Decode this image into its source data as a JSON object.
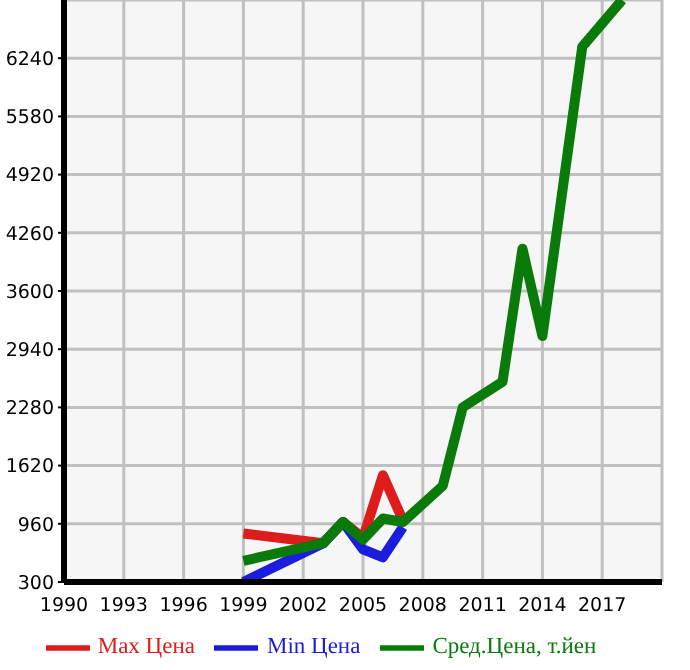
{
  "chart_data": {
    "type": "line",
    "xlim": [
      1990,
      2020
    ],
    "xticks": [
      1990,
      1993,
      1996,
      1999,
      2002,
      2005,
      2008,
      2011,
      2014,
      2017
    ],
    "ylim": [
      300,
      6900
    ],
    "yticks": [
      300,
      960,
      1620,
      2280,
      2940,
      3600,
      4260,
      4920,
      5580,
      6240
    ],
    "grid": true,
    "legend": "bottom",
    "marker": "none",
    "line_style": "solid",
    "series": [
      {
        "name": "Max Цена",
        "color": "#dd1c1c",
        "x": [
          1999,
          2003,
          2004,
          2005,
          2006,
          2007
        ],
        "values": [
          850,
          740,
          980,
          800,
          1510,
          1000
        ]
      },
      {
        "name": "Min Цена",
        "color": "#1c1cdd",
        "x": [
          1999,
          2003,
          2004,
          2005,
          2006,
          2007
        ],
        "values": [
          300,
          740,
          980,
          670,
          580,
          920
        ]
      },
      {
        "name": "Сред.Цена, т.йен",
        "color": "#0a7a0a",
        "x": [
          1999,
          2003,
          2004,
          2005,
          2006,
          2007,
          2009,
          2010,
          2012,
          2013,
          2014,
          2016,
          2018
        ],
        "values": [
          540,
          740,
          980,
          780,
          1020,
          980,
          1390,
          2280,
          2570,
          4080,
          3090,
          6370,
          6900
        ]
      }
    ]
  }
}
